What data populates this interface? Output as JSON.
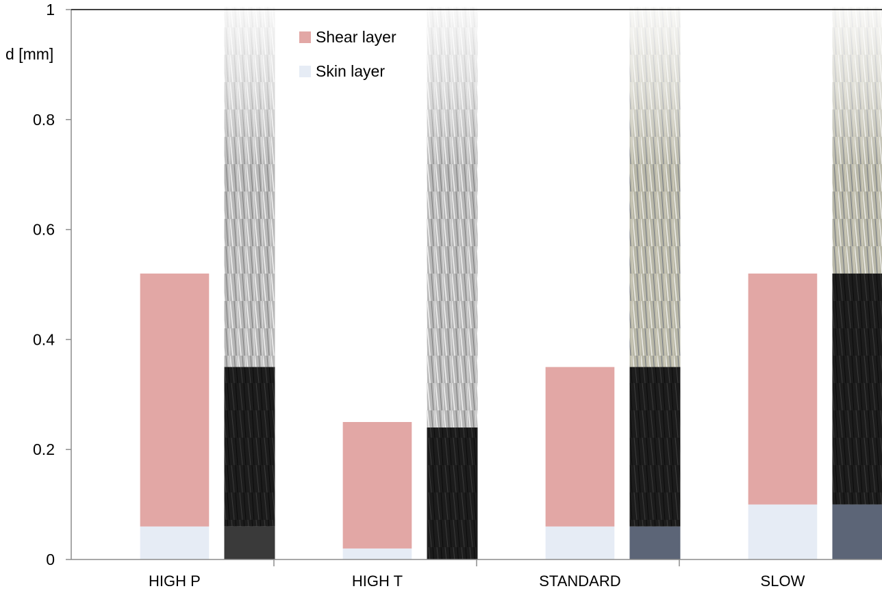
{
  "chart_data": {
    "type": "bar",
    "stacked": true,
    "title": "",
    "xlabel": "",
    "ylabel": "d [mm]",
    "ylim": [
      0,
      1
    ],
    "yticks": [
      "0",
      "0.2",
      "0.4",
      "0.6",
      "0.8",
      "1"
    ],
    "categories": [
      "HIGH P",
      "HIGH T",
      "STANDARD",
      "SLOW"
    ],
    "series": [
      {
        "name": "Skin layer",
        "color": "#e6ecf5",
        "values": [
          0.06,
          0.02,
          0.06,
          0.1
        ]
      },
      {
        "name": "Shear layer",
        "color": "#e2a7a5",
        "values": [
          0.46,
          0.23,
          0.29,
          0.42
        ]
      }
    ],
    "legend_position": "top",
    "grid": false,
    "micrograph_strips": [
      {
        "category": "HIGH P",
        "style": "grayscale",
        "dark_band": [
          0.06,
          0.35
        ]
      },
      {
        "category": "HIGH T",
        "style": "grayscale",
        "dark_band": [
          0.0,
          0.24
        ]
      },
      {
        "category": "STANDARD",
        "style": "color",
        "dark_band": [
          0.06,
          0.35
        ]
      },
      {
        "category": "SLOW",
        "style": "color",
        "dark_band": [
          0.1,
          0.52
        ]
      }
    ]
  }
}
